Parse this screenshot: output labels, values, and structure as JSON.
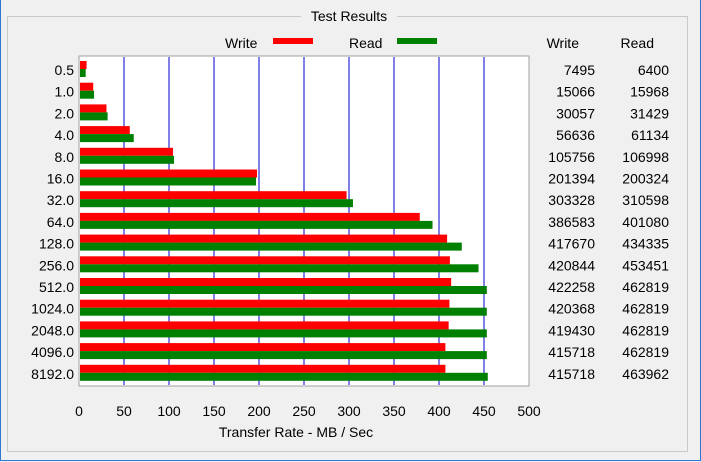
{
  "group_title": "Test Results",
  "colors": {
    "write": "#ff0000",
    "read": "#008000",
    "grid": "#0000cc",
    "panel": "#ffffff"
  },
  "columns": {
    "write": "Write",
    "read": "Read"
  },
  "chart_data": {
    "type": "bar",
    "orientation": "horizontal",
    "categories": [
      "0.5",
      "1.0",
      "2.0",
      "4.0",
      "8.0",
      "16.0",
      "32.0",
      "64.0",
      "128.0",
      "256.0",
      "512.0",
      "1024.0",
      "2048.0",
      "4096.0",
      "8192.0"
    ],
    "series": [
      {
        "name": "Write",
        "values": [
          7.3,
          14.7,
          29.4,
          55.3,
          103.3,
          196.7,
          296.2,
          377.5,
          407.9,
          411.0,
          412.4,
          410.5,
          409.6,
          406.0,
          406.0
        ],
        "table_values": [
          "7495",
          "15066",
          "30057",
          "56636",
          "105756",
          "201394",
          "303328",
          "386583",
          "417670",
          "420844",
          "422258",
          "420368",
          "419430",
          "415718",
          "415718"
        ]
      },
      {
        "name": "Read",
        "values": [
          6.3,
          15.6,
          30.7,
          59.7,
          104.5,
          195.6,
          303.3,
          391.7,
          424.2,
          442.8,
          452.0,
          452.0,
          452.0,
          452.0,
          453.1
        ],
        "table_values": [
          "6400",
          "15968",
          "31429",
          "61134",
          "106998",
          "200324",
          "310598",
          "401080",
          "434335",
          "453451",
          "462819",
          "462819",
          "462819",
          "462819",
          "463962"
        ]
      }
    ],
    "xlabel": "Transfer Rate - MB / Sec",
    "xlim": [
      0,
      500
    ],
    "xticks": [
      "0",
      "50",
      "100",
      "150",
      "200",
      "250",
      "300",
      "350",
      "400",
      "450",
      "500"
    ],
    "grid": true,
    "legend": "top"
  }
}
